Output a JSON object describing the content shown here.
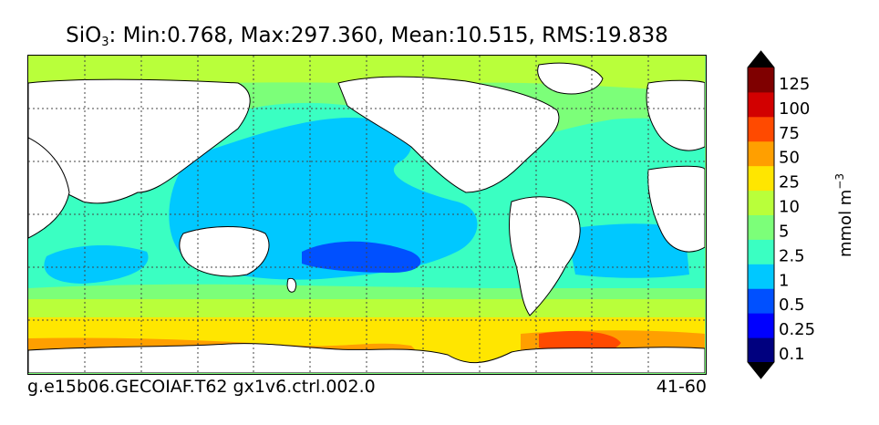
{
  "title": {
    "prefix": "SiO",
    "subscript": "3",
    "stats": ": Min:0.768, Max:297.360, Mean:10.515, RMS:19.838"
  },
  "caption_left": "g.e15b06.GECOIAF.T62 gx1v6.ctrl.002.0",
  "caption_right": "41-60",
  "colorbar": {
    "unit_base": "mmol m",
    "unit_exp": "−3",
    "levels": [
      "0.1",
      "0.25",
      "0.5",
      "1",
      "2.5",
      "5",
      "10",
      "25",
      "50",
      "75",
      "100",
      "125"
    ],
    "colors": [
      "#00007f",
      "#0000ff",
      "#0050ff",
      "#00c8ff",
      "#3affc2",
      "#7cff79",
      "#b9ff3a",
      "#ffe600",
      "#ff9f00",
      "#ff4a00",
      "#d20000",
      "#7f0000"
    ],
    "extend_low_color": "#000000",
    "extend_high_color": "#000000"
  },
  "map": {
    "land_color": "#ffffff",
    "grid_style": "dotted",
    "coastline_color": "#000000"
  }
}
